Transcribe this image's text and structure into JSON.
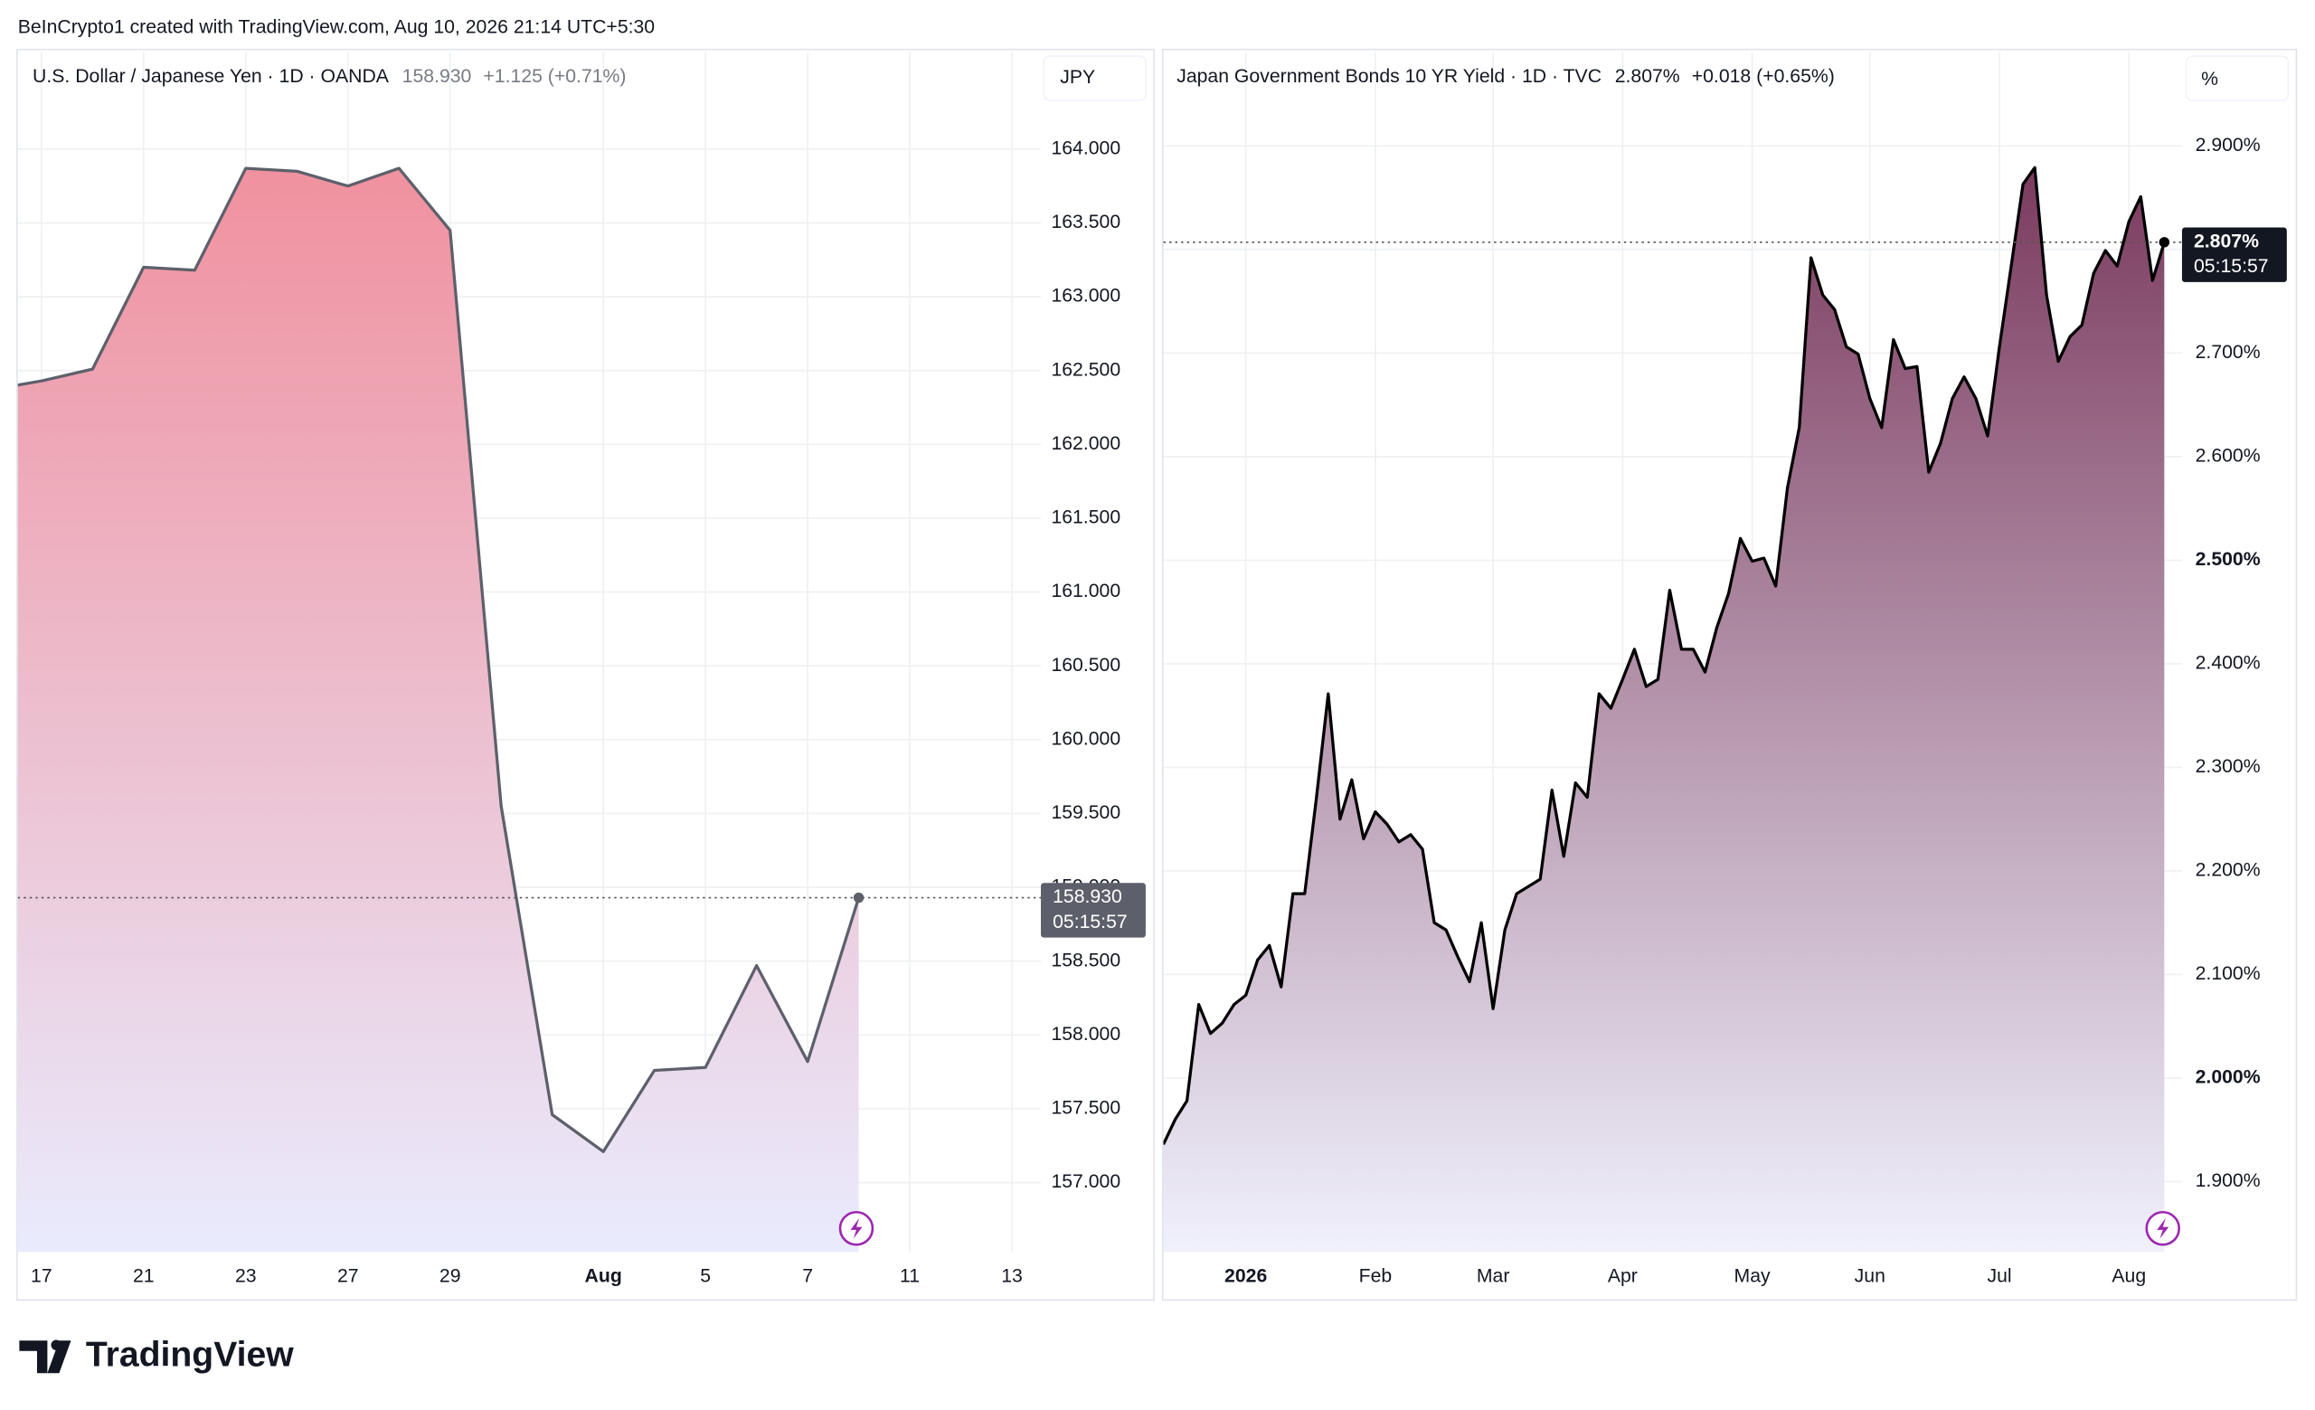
{
  "header": {
    "attribution": "BeInCrypto1 created with TradingView.com, Aug 10, 2026 21:14 UTC+5:30",
    "logo": "TradingView"
  },
  "chart_data": [
    {
      "type": "area",
      "title": "U.S. Dollar / Japanese Yen · 1D · OANDA",
      "price": "158.930",
      "change": "+1.125 (+0.71%)",
      "unit": "JPY",
      "last_label": "158.930",
      "countdown": "05:15:57",
      "color": "#5d606b",
      "fill_top": "#f0919f",
      "fill_bottom": "#e9ebfd",
      "categories": [
        null,
        "17",
        null,
        "21",
        null,
        "23",
        null,
        "27",
        null,
        "29",
        null,
        null,
        "Aug",
        null,
        "5",
        null,
        "7",
        null,
        "11",
        null,
        "13"
      ],
      "values": [
        162.37,
        162.43,
        162.51,
        163.2,
        163.18,
        163.87,
        163.85,
        163.75,
        163.87,
        163.45,
        159.55,
        157.46,
        157.21,
        157.76,
        157.78,
        158.47,
        157.82,
        158.93,
        null,
        null,
        null
      ],
      "ylim": [
        156.53,
        164.66
      ],
      "yticks": [
        {
          "value": 157,
          "label": "157.000"
        },
        {
          "value": 157.5,
          "label": "157.500"
        },
        {
          "value": 158,
          "label": "158.000"
        },
        {
          "value": 158.5,
          "label": "158.500"
        },
        {
          "value": 159,
          "label": "159.000"
        },
        {
          "value": 159.5,
          "label": "159.500"
        },
        {
          "value": 160,
          "label": "160.000"
        },
        {
          "value": 160.5,
          "label": "160.500"
        },
        {
          "value": 161,
          "label": "161.000"
        },
        {
          "value": 161.5,
          "label": "161.500"
        },
        {
          "value": 162,
          "label": "162.000"
        },
        {
          "value": 162.5,
          "label": "162.500"
        },
        {
          "value": 163,
          "label": "163.000"
        },
        {
          "value": 163.5,
          "label": "163.500"
        },
        {
          "value": 164,
          "label": "164.000"
        }
      ],
      "grid": true
    },
    {
      "type": "area",
      "title": "Japan Government Bonds 10 YR Yield · 1D · TVC",
      "price": "2.807%",
      "change": "+0.018 (+0.65%)",
      "unit": "%",
      "last_label": "2.807%",
      "countdown": "05:15:57",
      "color": "#000000",
      "fill_top": "#7b3b5e",
      "fill_bottom": "#f0f1fc",
      "categories": [
        null,
        null,
        null,
        null,
        null,
        null,
        null,
        "2026",
        null,
        null,
        null,
        null,
        null,
        null,
        null,
        null,
        null,
        null,
        "Feb",
        null,
        null,
        null,
        null,
        null,
        null,
        null,
        null,
        null,
        "Mar",
        null,
        null,
        null,
        null,
        null,
        null,
        null,
        null,
        null,
        null,
        "Apr",
        null,
        null,
        null,
        null,
        null,
        null,
        null,
        null,
        null,
        null,
        "May",
        null,
        null,
        null,
        null,
        null,
        null,
        null,
        null,
        null,
        "Jun",
        null,
        null,
        null,
        null,
        null,
        null,
        null,
        null,
        null,
        null,
        "Jul",
        null,
        null,
        null,
        null,
        null,
        null,
        null,
        null,
        null,
        null,
        "Aug",
        null,
        null,
        null
      ],
      "values": [
        1.936,
        1.96,
        1.978,
        2.071,
        2.043,
        2.053,
        2.071,
        2.08,
        2.114,
        2.128,
        2.088,
        2.178,
        2.178,
        2.271,
        2.371,
        2.25,
        2.288,
        2.231,
        2.257,
        2.245,
        2.228,
        2.235,
        2.221,
        2.15,
        2.143,
        2.117,
        2.093,
        2.15,
        2.067,
        2.143,
        2.178,
        2.185,
        2.192,
        2.278,
        2.214,
        2.285,
        2.271,
        2.371,
        2.357,
        2.385,
        2.414,
        2.378,
        2.385,
        2.471,
        2.414,
        2.414,
        2.392,
        2.435,
        2.468,
        2.521,
        2.499,
        2.502,
        2.475,
        2.57,
        2.628,
        2.792,
        2.756,
        2.742,
        2.706,
        2.699,
        2.656,
        2.628,
        2.713,
        2.685,
        2.687,
        2.585,
        2.613,
        2.656,
        2.677,
        2.656,
        2.62,
        2.706,
        2.784,
        2.863,
        2.879,
        2.756,
        2.692,
        2.716,
        2.727,
        2.777,
        2.799,
        2.784,
        2.827,
        2.851,
        2.77,
        2.807
      ],
      "ylim": [
        1.832,
        2.991
      ],
      "yticks": [
        {
          "value": 1.9,
          "label": "1.900%"
        },
        {
          "value": 2.0,
          "label": "2.000%"
        },
        {
          "value": 2.1,
          "label": "2.100%"
        },
        {
          "value": 2.2,
          "label": "2.200%"
        },
        {
          "value": 2.3,
          "label": "2.300%"
        },
        {
          "value": 2.4,
          "label": "2.400%"
        },
        {
          "value": 2.5,
          "label": "2.500%"
        },
        {
          "value": 2.6,
          "label": "2.600%"
        },
        {
          "value": 2.7,
          "label": "2.700%"
        },
        {
          "value": 2.8,
          "label": "2.800%"
        },
        {
          "value": 2.9,
          "label": "2.900%"
        }
      ],
      "grid": true
    }
  ]
}
